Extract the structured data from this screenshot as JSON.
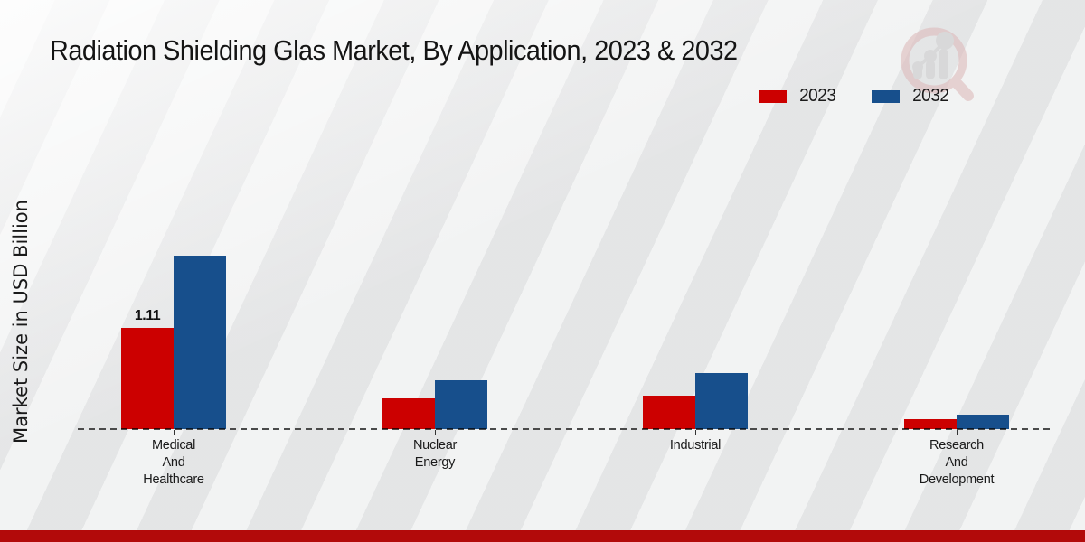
{
  "title": "Radiation Shielding Glas Market, By Application, 2023 & 2032",
  "ylabel": "Market Size in USD Billion",
  "legend": [
    {
      "label": "2023",
      "color": "#cc0000"
    },
    {
      "label": "2032",
      "color": "#174f8c"
    }
  ],
  "logo": {
    "name": "magnifier-bar-chart-watermark"
  },
  "colors": {
    "bar_2023": "#cc0000",
    "bar_2032": "#174f8c",
    "bottom_band": "#b20a0a",
    "baseline": "#4a4a4a",
    "background": "#e8e9ea"
  },
  "chart_data": {
    "type": "bar",
    "title": "Radiation Shielding Glas Market, By Application, 2023 & 2032",
    "xlabel": "",
    "ylabel": "Market Size in USD Billion",
    "categories": [
      "Medical\nAnd\nHealthcare",
      "Nuclear\nEnergy",
      "Industrial",
      "Research\nAnd\nDevelopment"
    ],
    "series": [
      {
        "name": "2023",
        "color": "#cc0000",
        "values": [
          1.11,
          0.34,
          0.37,
          0.11
        ],
        "labels": [
          "1.11",
          "",
          "",
          ""
        ]
      },
      {
        "name": "2032",
        "color": "#174f8c",
        "values": [
          1.9,
          0.53,
          0.61,
          0.16
        ],
        "labels": [
          "",
          "",
          "",
          ""
        ]
      }
    ],
    "ylim": [
      0,
      2.0
    ],
    "grid": false,
    "axis_style": "dashed-baseline-only",
    "legend_position": "top-right"
  }
}
